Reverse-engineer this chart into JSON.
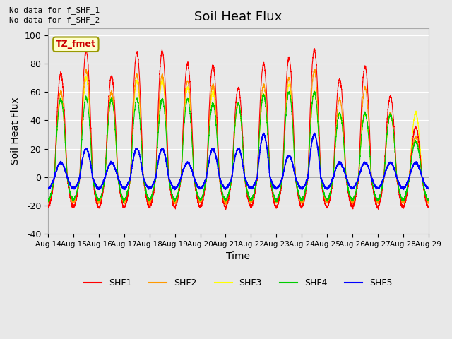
{
  "title": "Soil Heat Flux",
  "xlabel": "Time",
  "ylabel": "Soil Heat Flux",
  "ylim": [
    -40,
    105
  ],
  "yticks": [
    -40,
    -20,
    0,
    20,
    40,
    60,
    80,
    100
  ],
  "background_color": "#e8e8e8",
  "series": [
    "SHF1",
    "SHF2",
    "SHF3",
    "SHF4",
    "SHF5"
  ],
  "colors": [
    "#ff0000",
    "#ff9900",
    "#ffff00",
    "#00cc00",
    "#0000ff"
  ],
  "no_data_text": [
    "No data for f_SHF_1",
    "No data for f_SHF_2"
  ],
  "tz_label": "TZ_fmet",
  "x_tick_labels": [
    "Aug 14",
    "Aug 15",
    "Aug 16",
    "Aug 17",
    "Aug 18",
    "Aug 19",
    "Aug 20",
    "Aug 21",
    "Aug 22",
    "Aug 23",
    "Aug 24",
    "Aug 25",
    "Aug 26",
    "Aug 27",
    "Aug 28",
    "Aug 29"
  ],
  "n_days": 15,
  "peaks1": [
    73,
    89,
    71,
    88,
    89,
    80,
    79,
    63,
    80,
    84,
    90,
    69,
    78,
    57,
    35
  ],
  "peaks2": [
    60,
    75,
    60,
    72,
    72,
    68,
    65,
    52,
    65,
    70,
    75,
    55,
    63,
    45,
    28
  ],
  "peaks3": [
    55,
    70,
    55,
    68,
    68,
    63,
    60,
    52,
    58,
    65,
    60,
    45,
    45,
    44,
    45
  ],
  "peaks4": [
    55,
    56,
    55,
    55,
    55,
    55,
    52,
    52,
    58,
    60,
    60,
    45,
    45,
    44,
    25
  ],
  "peaks5": [
    10,
    20,
    10,
    20,
    20,
    10,
    20,
    20,
    30,
    15,
    30,
    10,
    10,
    10,
    10
  ],
  "trough1": -21,
  "trough2": -18,
  "trough3": -17,
  "trough4": -16,
  "trough5": -8
}
